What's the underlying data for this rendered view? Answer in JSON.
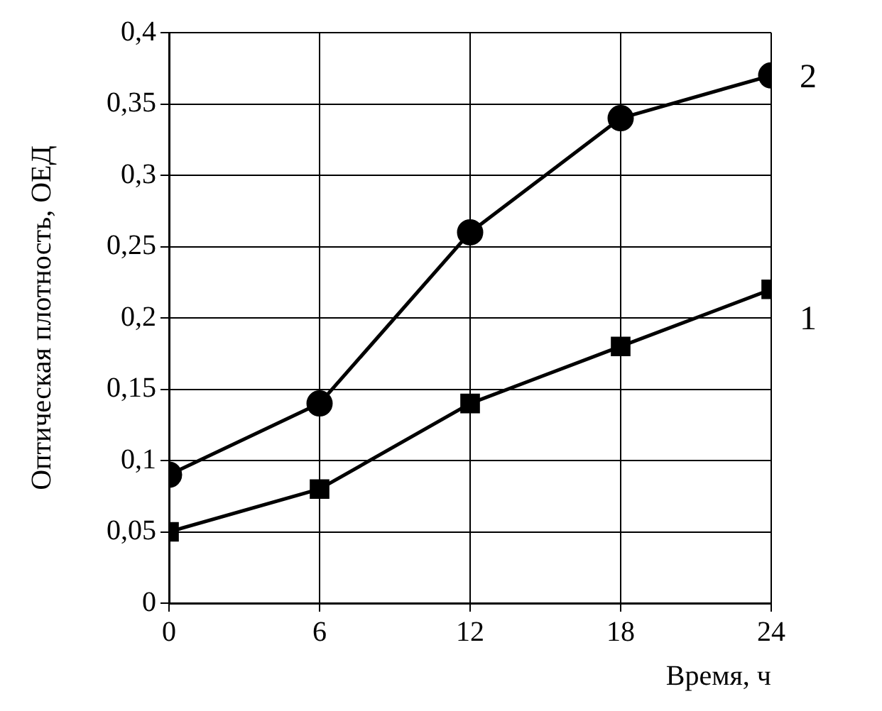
{
  "chart_data": {
    "type": "line",
    "xlabel": "Время, ч",
    "ylabel": "Оптическая плотность, ОЕД",
    "x": [
      0,
      6,
      12,
      18,
      24
    ],
    "series": [
      {
        "name": "1",
        "color": "#000000",
        "marker": "square",
        "values": [
          0.05,
          0.08,
          0.14,
          0.18,
          0.22
        ]
      },
      {
        "name": "2",
        "color": "#000000",
        "marker": "circle",
        "values": [
          0.09,
          0.14,
          0.26,
          0.34,
          0.37
        ]
      }
    ],
    "xlim": [
      0,
      24
    ],
    "xticks": [
      0,
      6,
      12,
      18,
      24
    ],
    "ylim": [
      0,
      0.4
    ],
    "yticks": [
      0,
      {
        "value": 0.05,
        "label": "0,05"
      },
      {
        "value": 0.1,
        "label": "0,1"
      },
      {
        "value": 0.15,
        "label": "0,15"
      },
      {
        "value": 0.2,
        "label": "0,2"
      },
      {
        "value": 0.25,
        "label": "0,25"
      },
      {
        "value": 0.3,
        "label": "0,3"
      },
      {
        "value": 0.35,
        "label": "0,35"
      },
      {
        "value": 0.4,
        "label": "0,4"
      }
    ],
    "grid": true,
    "legend": false,
    "line_style": "solid"
  }
}
